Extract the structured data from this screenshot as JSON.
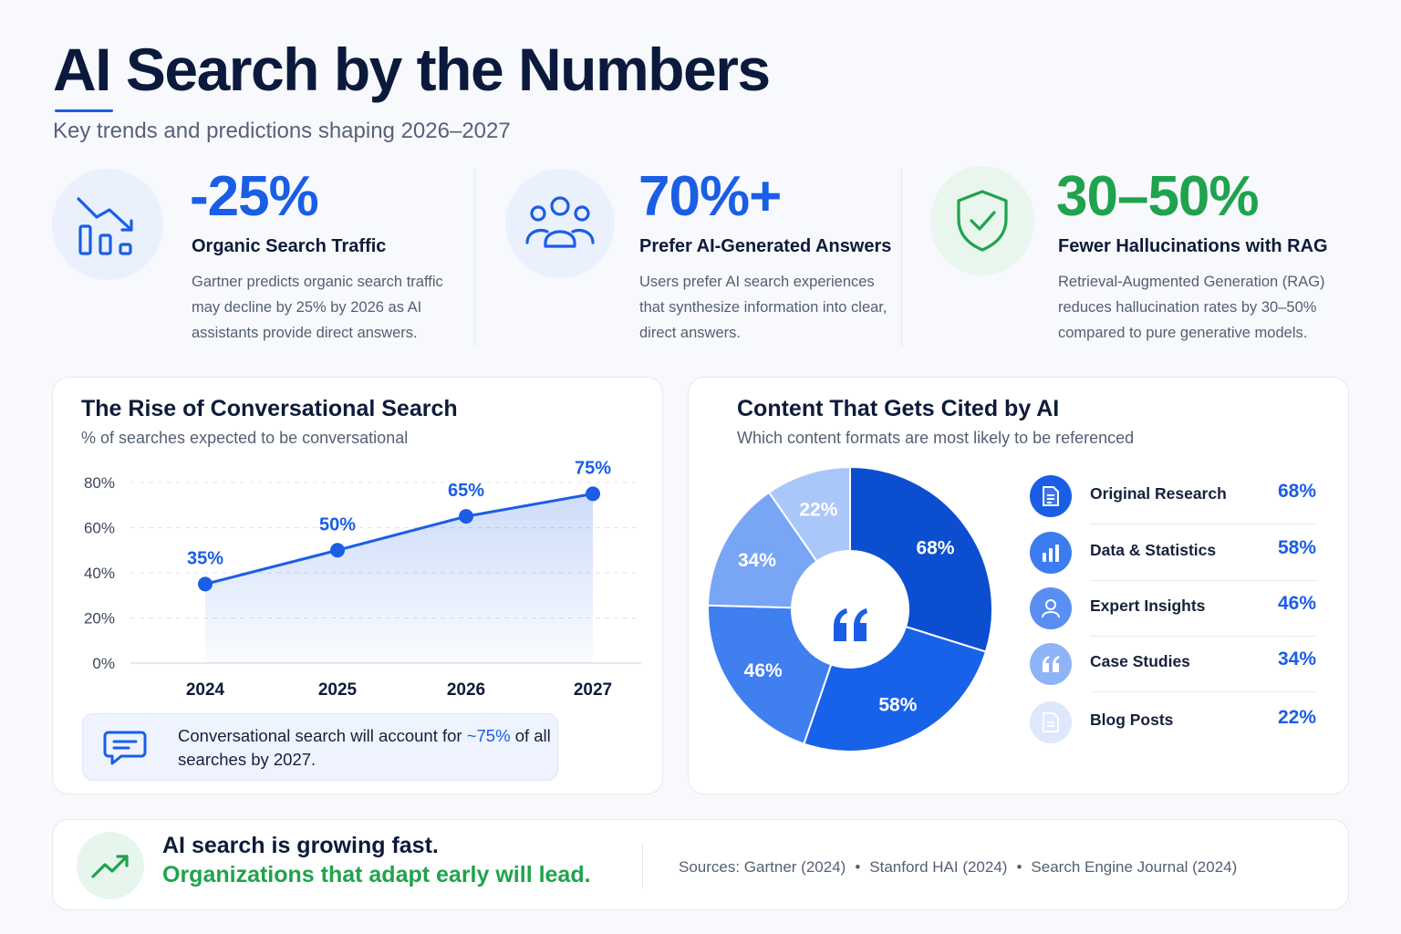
{
  "header": {
    "title": "AI Search by the Numbers",
    "subtitle": "Key trends and predictions shaping 2026–2027"
  },
  "stats": [
    {
      "value": "-25%",
      "label": "Organic Search Traffic",
      "description": "Gartner predicts organic search traffic may decline by 25% by 2026 as AI assistants provide direct answers.",
      "icon": "declining-bar-chart-icon",
      "color": "#1a5ee6"
    },
    {
      "value": "70%+",
      "label": "Prefer AI-Generated Answers",
      "description": "Users prefer AI search experiences that synthesize information into clear, direct answers.",
      "icon": "users-group-icon",
      "color": "#1a5ee6"
    },
    {
      "value": "30–50%",
      "label": "Fewer Hallucinations with RAG",
      "description": "Retrieval-Augmented Generation (RAG) reduces hallucination rates by 30–50% compared to pure generative models.",
      "icon": "shield-check-icon",
      "color": "#1fa34d"
    }
  ],
  "line_card": {
    "title": "The Rise of Conversational Search",
    "subtitle": "% of searches expected to be conversational",
    "callout_prefix": "Conversational search will account for",
    "callout_highlight": "~75%",
    "callout_suffix": "of all searches by 2027.",
    "callout_icon": "chat-bubble-icon"
  },
  "pie_card": {
    "title": "Content That Gets Cited by AI",
    "subtitle": "Which content formats are most likely to be referenced",
    "center_icon": "quote-icon"
  },
  "footer": {
    "line1": "AI search is growing fast.",
    "line2": "Organizations that adapt early will lead.",
    "icon": "trending-up-icon",
    "sources": [
      "Sources: Gartner (2024)",
      "Stanford HAI (2024)",
      "Search Engine Journal (2024)"
    ]
  },
  "chart_data": [
    {
      "type": "area",
      "title": "The Rise of Conversational Search",
      "subtitle": "% of searches expected to be conversational",
      "x": [
        "2024",
        "2025",
        "2026",
        "2027"
      ],
      "values": [
        35,
        50,
        65,
        75
      ],
      "data_labels": [
        "35%",
        "50%",
        "65%",
        "75%"
      ],
      "y_ticks": [
        "0%",
        "20%",
        "40%",
        "60%",
        "80%"
      ],
      "ylim": [
        0,
        80
      ],
      "grid": true,
      "color": "#1a5ee6"
    },
    {
      "type": "pie",
      "title": "Content That Gets Cited by AI",
      "subtitle": "Which content formats are most likely to be referenced",
      "donut": true,
      "slices": [
        {
          "label": "Original Research",
          "value": 68,
          "display": "68%",
          "color": "#0b4fd0",
          "icon": "document-icon"
        },
        {
          "label": "Data & Statistics",
          "value": 58,
          "display": "58%",
          "color": "#1862ea",
          "icon": "bar-chart-icon"
        },
        {
          "label": "Expert Insights",
          "value": 46,
          "display": "46%",
          "color": "#3f7ff0",
          "icon": "person-icon"
        },
        {
          "label": "Case Studies",
          "value": 34,
          "display": "34%",
          "color": "#78a6f5",
          "icon": "quote-icon"
        },
        {
          "label": "Blog Posts",
          "value": 22,
          "display": "22%",
          "color": "#aac7fa",
          "icon": "page-icon"
        }
      ]
    }
  ]
}
